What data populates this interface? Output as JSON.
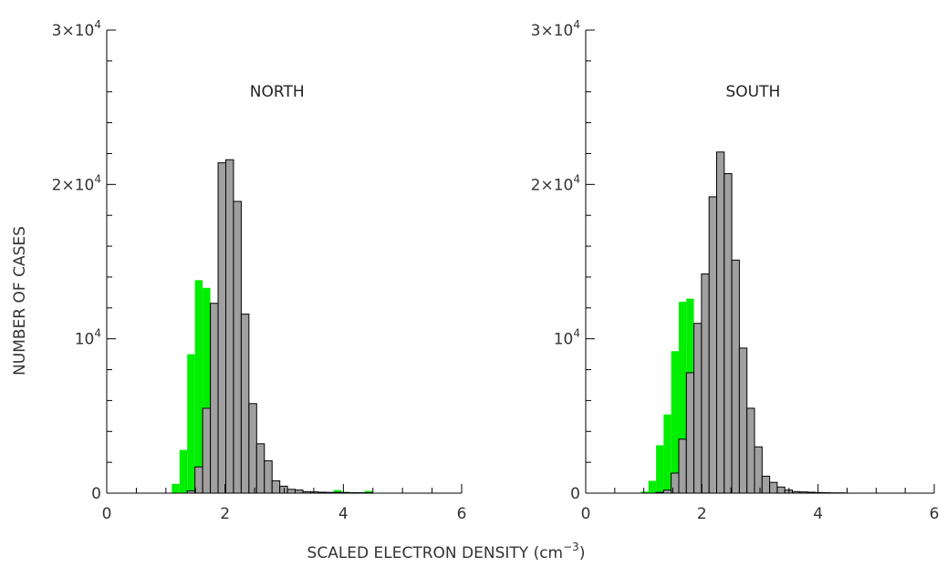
{
  "figure": {
    "xlabel_main": "SCALED ELECTRON DENSITY (cm",
    "xlabel_sup": "−3",
    "xlabel_close": ")",
    "ylabel": "NUMBER OF CASES"
  },
  "chart_data": [
    {
      "type": "bar",
      "title": "NORTH",
      "xlim": [
        0,
        6
      ],
      "ylim": [
        0,
        30000
      ],
      "x_ticks": [
        {
          "value": 0,
          "label": "0"
        },
        {
          "value": 2,
          "label": "2"
        },
        {
          "value": 4,
          "label": "4"
        },
        {
          "value": 6,
          "label": "6"
        }
      ],
      "y_ticks": [
        {
          "value": 0,
          "mantissa": "0",
          "base": "",
          "exp": ""
        },
        {
          "value": 10000,
          "mantissa": "",
          "base": "10",
          "exp": "4"
        },
        {
          "value": 20000,
          "mantissa": "2×",
          "base": "10",
          "exp": "4"
        },
        {
          "value": 30000,
          "mantissa": "3×",
          "base": "10",
          "exp": "4"
        }
      ],
      "bin_start": 1.1,
      "bin_width": 0.1304,
      "series": [
        {
          "style": "filled-green",
          "color": "#00ee00",
          "values": [
            600,
            2800,
            9000,
            13800,
            13300,
            10500,
            5800,
            2800,
            2300,
            800,
            400,
            400,
            300,
            300,
            150,
            100,
            100,
            80,
            60,
            60,
            50,
            200,
            80,
            60,
            60,
            150
          ]
        },
        {
          "style": "outlined-gray",
          "color": "#a0a0a0",
          "values": [
            0,
            0,
            150,
            1700,
            5500,
            12300,
            21400,
            21600,
            18900,
            11600,
            5800,
            3200,
            2100,
            800,
            450,
            250,
            200,
            100,
            80,
            60,
            50,
            50,
            40,
            30,
            30,
            30
          ]
        }
      ]
    },
    {
      "type": "bar",
      "title": "SOUTH",
      "xlim": [
        0,
        6
      ],
      "ylim": [
        0,
        30000
      ],
      "x_ticks": [
        {
          "value": 0,
          "label": "0"
        },
        {
          "value": 2,
          "label": "2"
        },
        {
          "value": 4,
          "label": "4"
        },
        {
          "value": 6,
          "label": "6"
        }
      ],
      "y_ticks": [
        {
          "value": 0,
          "mantissa": "0",
          "base": "",
          "exp": ""
        },
        {
          "value": 10000,
          "mantissa": "",
          "base": "10",
          "exp": "4"
        },
        {
          "value": 20000,
          "mantissa": "2×",
          "base": "10",
          "exp": "4"
        },
        {
          "value": 30000,
          "mantissa": "3×",
          "base": "10",
          "exp": "4"
        }
      ],
      "bin_start": 0.95,
      "bin_width": 0.1304,
      "series": [
        {
          "style": "filled-green",
          "color": "#00ee00",
          "values": [
            100,
            800,
            3100,
            5100,
            9200,
            12400,
            12600,
            8100,
            3700,
            1200,
            1000,
            1000,
            1000,
            700,
            300,
            200,
            150,
            100,
            60,
            60,
            40,
            40,
            30,
            20,
            20,
            20,
            20
          ]
        },
        {
          "style": "outlined-gray",
          "color": "#a0a0a0",
          "values": [
            0,
            0,
            50,
            200,
            1300,
            3500,
            7800,
            11000,
            14200,
            19200,
            22100,
            20700,
            15100,
            9400,
            5500,
            3000,
            1100,
            700,
            400,
            200,
            100,
            80,
            60,
            40,
            30,
            20,
            20
          ]
        }
      ]
    }
  ]
}
